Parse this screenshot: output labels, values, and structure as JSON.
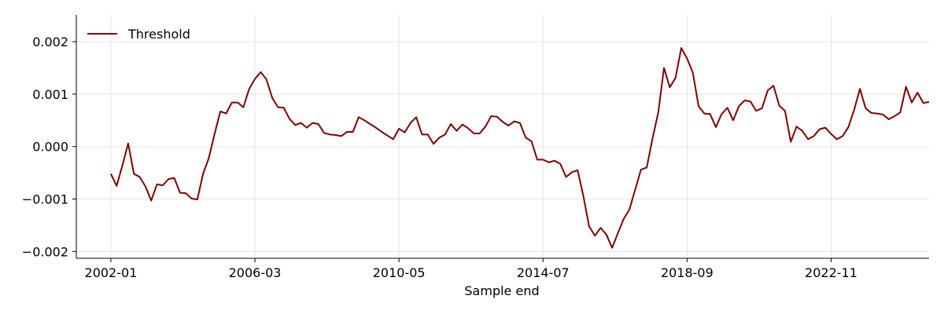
{
  "chart_data": {
    "type": "line",
    "title": "",
    "xlabel": "Sample end",
    "ylabel": "",
    "x_tick_labels": [
      "2002-01",
      "2006-03",
      "2010-05",
      "2014-07",
      "2018-09",
      "2022-11"
    ],
    "y_tick_labels": [
      "−0.002",
      "−0.001",
      "0.000",
      "0.001",
      "0.002"
    ],
    "y_ticks": [
      -0.002,
      -0.001,
      0.0,
      0.001,
      0.002
    ],
    "xlim": [
      "2001-01",
      "2025-09"
    ],
    "ylim": [
      -0.00213,
      0.00251
    ],
    "grid": true,
    "legend_position": "top-left",
    "series": [
      {
        "name": "Threshold",
        "color": "#800000",
        "points": [
          [
            "2002-01",
            -0.00052
          ],
          [
            "2002-03",
            -0.00075
          ],
          [
            "2002-05",
            -0.00036
          ],
          [
            "2002-07",
            6e-05
          ],
          [
            "2002-09",
            -0.00052
          ],
          [
            "2002-11",
            -0.00058
          ],
          [
            "2003-01",
            -0.00076
          ],
          [
            "2003-03",
            -0.00103
          ],
          [
            "2003-05",
            -0.00072
          ],
          [
            "2003-07",
            -0.00074
          ],
          [
            "2003-09",
            -0.00062
          ],
          [
            "2003-11",
            -0.0006
          ],
          [
            "2004-01",
            -0.00088
          ],
          [
            "2004-03",
            -0.00089
          ],
          [
            "2004-05",
            -0.00099
          ],
          [
            "2004-07",
            -0.00101
          ],
          [
            "2004-09",
            -0.00052
          ],
          [
            "2004-11",
            -0.00022
          ],
          [
            "2005-01",
            0.00024
          ],
          [
            "2005-03",
            0.00067
          ],
          [
            "2005-05",
            0.00063
          ],
          [
            "2005-07",
            0.00084
          ],
          [
            "2005-09",
            0.00084
          ],
          [
            "2005-11",
            0.00075
          ],
          [
            "2006-01",
            0.0011
          ],
          [
            "2006-03",
            0.00129
          ],
          [
            "2006-05",
            0.00142
          ],
          [
            "2006-07",
            0.00128
          ],
          [
            "2006-09",
            0.00093
          ],
          [
            "2006-11",
            0.00075
          ],
          [
            "2007-01",
            0.00074
          ],
          [
            "2007-03",
            0.00053
          ],
          [
            "2007-05",
            0.00041
          ],
          [
            "2007-07",
            0.00045
          ],
          [
            "2007-09",
            0.00036
          ],
          [
            "2007-11",
            0.00045
          ],
          [
            "2008-01",
            0.00043
          ],
          [
            "2008-03",
            0.00026
          ],
          [
            "2008-05",
            0.00023
          ],
          [
            "2008-07",
            0.00022
          ],
          [
            "2008-09",
            0.0002
          ],
          [
            "2008-11",
            0.00028
          ],
          [
            "2009-01",
            0.00028
          ],
          [
            "2009-03",
            0.00056
          ],
          [
            "2009-05",
            0.0005
          ],
          [
            "2009-07",
            0.00043
          ],
          [
            "2009-09",
            0.00036
          ],
          [
            "2009-11",
            0.00028
          ],
          [
            "2010-01",
            0.00021
          ],
          [
            "2010-03",
            0.00014
          ],
          [
            "2010-05",
            0.00034
          ],
          [
            "2010-07",
            0.00027
          ],
          [
            "2010-09",
            0.00045
          ],
          [
            "2010-11",
            0.00056
          ],
          [
            "2011-01",
            0.00023
          ],
          [
            "2011-03",
            0.00023
          ],
          [
            "2011-05",
            5e-05
          ],
          [
            "2011-07",
            0.00017
          ],
          [
            "2011-09",
            0.00023
          ],
          [
            "2011-11",
            0.00043
          ],
          [
            "2012-01",
            0.0003
          ],
          [
            "2012-03",
            0.00042
          ],
          [
            "2012-05",
            0.00035
          ],
          [
            "2012-07",
            0.00025
          ],
          [
            "2012-09",
            0.00025
          ],
          [
            "2012-11",
            0.00038
          ],
          [
            "2013-01",
            0.00058
          ],
          [
            "2013-03",
            0.00057
          ],
          [
            "2013-05",
            0.00047
          ],
          [
            "2013-07",
            0.0004
          ],
          [
            "2013-09",
            0.00048
          ],
          [
            "2013-11",
            0.00045
          ],
          [
            "2014-01",
            0.00017
          ],
          [
            "2014-03",
            0.0001
          ],
          [
            "2014-05",
            -0.00025
          ],
          [
            "2014-07",
            -0.00025
          ],
          [
            "2014-09",
            -0.0003
          ],
          [
            "2014-11",
            -0.00027
          ],
          [
            "2015-01",
            -0.00033
          ],
          [
            "2015-03",
            -0.00058
          ],
          [
            "2015-05",
            -0.00049
          ],
          [
            "2015-07",
            -0.00045
          ],
          [
            "2015-09",
            -0.00094
          ],
          [
            "2015-11",
            -0.00152
          ],
          [
            "2016-01",
            -0.0017
          ],
          [
            "2016-03",
            -0.00155
          ],
          [
            "2016-05",
            -0.00168
          ],
          [
            "2016-07",
            -0.00193
          ],
          [
            "2016-09",
            -0.00165
          ],
          [
            "2016-11",
            -0.00138
          ],
          [
            "2017-01",
            -0.0012
          ],
          [
            "2017-03",
            -0.00082
          ],
          [
            "2017-05",
            -0.00044
          ],
          [
            "2017-07",
            -0.0004
          ],
          [
            "2017-09",
            0.00015
          ],
          [
            "2017-11",
            0.00065
          ],
          [
            "2018-01",
            0.0015
          ],
          [
            "2018-03",
            0.00113
          ],
          [
            "2018-05",
            0.00131
          ],
          [
            "2018-07",
            0.00188
          ],
          [
            "2018-09",
            0.00168
          ],
          [
            "2018-11",
            0.00141
          ],
          [
            "2019-01",
            0.00077
          ],
          [
            "2019-03",
            0.00063
          ],
          [
            "2019-05",
            0.00062
          ],
          [
            "2019-07",
            0.00037
          ],
          [
            "2019-09",
            0.00062
          ],
          [
            "2019-11",
            0.00074
          ],
          [
            "2020-01",
            0.0005
          ],
          [
            "2020-03",
            0.00077
          ],
          [
            "2020-05",
            0.00088
          ],
          [
            "2020-07",
            0.00086
          ],
          [
            "2020-09",
            0.00068
          ],
          [
            "2020-11",
            0.00073
          ],
          [
            "2021-01",
            0.00107
          ],
          [
            "2021-03",
            0.00116
          ],
          [
            "2021-05",
            0.00078
          ],
          [
            "2021-07",
            0.00068
          ],
          [
            "2021-09",
            9e-05
          ],
          [
            "2021-11",
            0.00038
          ],
          [
            "2022-01",
            0.0003
          ],
          [
            "2022-03",
            0.00014
          ],
          [
            "2022-05",
            0.0002
          ],
          [
            "2022-07",
            0.00033
          ],
          [
            "2022-09",
            0.00036
          ],
          [
            "2022-11",
            0.00024
          ],
          [
            "2023-01",
            0.00014
          ],
          [
            "2023-03",
            0.0002
          ],
          [
            "2023-05",
            0.00037
          ],
          [
            "2023-07",
            0.0007
          ],
          [
            "2023-09",
            0.0011
          ],
          [
            "2023-11",
            0.00073
          ],
          [
            "2024-01",
            0.00064
          ],
          [
            "2024-03",
            0.00063
          ],
          [
            "2024-05",
            0.00061
          ],
          [
            "2024-07",
            0.00052
          ],
          [
            "2024-09",
            0.00058
          ],
          [
            "2024-11",
            0.00065
          ],
          [
            "2025-01",
            0.00114
          ],
          [
            "2025-03",
            0.00084
          ],
          [
            "2025-05",
            0.00103
          ],
          [
            "2025-07",
            0.00083
          ],
          [
            "2025-09",
            0.00085
          ]
        ]
      }
    ]
  }
}
